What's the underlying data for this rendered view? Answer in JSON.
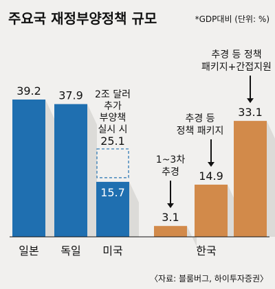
{
  "title": "주요국 재정부양정책 규모",
  "note": "*GDP대비 (단위: %)",
  "source": "〈자료: 블룸버그, 하이투자증권〉",
  "colors": {
    "blue": "#1f6fb0",
    "orange": "#d28a4a",
    "dash": "#1f6fb0",
    "text": "#111111"
  },
  "chart_data": {
    "type": "bar",
    "ylim": [
      0,
      39.2
    ],
    "groups": [
      {
        "label": "",
        "name": "japan",
        "bars": [
          {
            "values": [
              39.2
            ],
            "value_label": "39.2",
            "color": "#1f6fb0"
          }
        ]
      },
      {
        "label": "",
        "name": "germany",
        "bars": [
          {
            "values": [
              37.9
            ],
            "value_label": "37.9",
            "color": "#1f6fb0"
          }
        ]
      },
      {
        "label": "",
        "name": "usa",
        "bars": [
          {
            "values": [
              15.7,
              9.4
            ],
            "value_label": "15.7",
            "total_label": "25.1",
            "color": "#1f6fb0",
            "annotation": [
              "2조 달러",
              "추가",
              "부양책",
              "실시 시"
            ]
          }
        ]
      },
      {
        "label": "",
        "name": "korea-1",
        "bars": [
          {
            "values": [
              3.1
            ],
            "value_label": "3.1",
            "color": "#d28a4a",
            "annotation": [
              "1~3차",
              "추경"
            ]
          }
        ]
      },
      {
        "label": "",
        "name": "korea-2",
        "bars": [
          {
            "values": [
              14.9
            ],
            "value_label": "14.9",
            "color": "#d28a4a",
            "annotation": [
              "추경 등",
              "정책 패키지"
            ]
          }
        ]
      },
      {
        "label": "",
        "name": "korea-3",
        "bars": [
          {
            "values": [
              33.1
            ],
            "value_label": "33.1",
            "color": "#d28a4a",
            "annotation": [
              "추경 등 정책",
              "패키지+간접지원"
            ]
          }
        ]
      }
    ],
    "categories": [
      "일본",
      "독일",
      "미국",
      "한국"
    ]
  }
}
